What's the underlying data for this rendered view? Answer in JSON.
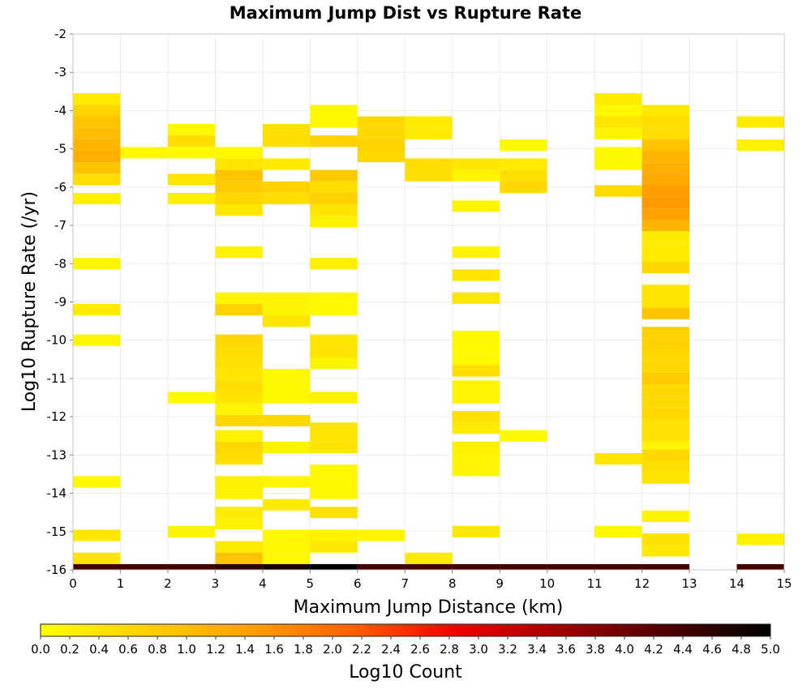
{
  "chart_data": {
    "type": "heatmap",
    "title": "Maximum Jump Dist vs Rupture Rate",
    "xlabel": "Maximum Jump Distance (km)",
    "ylabel": "Log10 Rupture Rate (/yr)",
    "xlim": [
      0,
      15
    ],
    "ylim": [
      -16,
      -2
    ],
    "x_ticks": [
      "0",
      "1",
      "2",
      "3",
      "4",
      "5",
      "6",
      "7",
      "8",
      "9",
      "10",
      "11",
      "12",
      "13",
      "14",
      "15"
    ],
    "y_ticks": [
      "-2",
      "-3",
      "-4",
      "-5",
      "-6",
      "-7",
      "-8",
      "-9",
      "-10",
      "-11",
      "-12",
      "-13",
      "-14",
      "-15",
      "-16"
    ],
    "x_bin_width": 1,
    "y_bin_height": 0.3,
    "grid": true,
    "colorbar": {
      "label": "Log10 Count",
      "min": 0,
      "max": 5,
      "ticks": [
        "0.0",
        "0.2",
        "0.4",
        "0.6",
        "0.8",
        "1.0",
        "1.2",
        "1.4",
        "1.6",
        "1.8",
        "2.0",
        "2.2",
        "2.4",
        "2.6",
        "2.8",
        "3.0",
        "3.2",
        "3.4",
        "3.6",
        "3.8",
        "4.0",
        "4.2",
        "4.4",
        "4.6",
        "4.8",
        "5.0"
      ],
      "colors": [
        "#ffff00",
        "#ffd000",
        "#ffa000",
        "#ff6000",
        "#ee0000",
        "#a00000",
        "#500000",
        "#000000"
      ]
    },
    "cells": [
      [
        0,
        -3.7,
        0.3
      ],
      [
        0,
        -4.0,
        0.65
      ],
      [
        0,
        -4.3,
        0.9
      ],
      [
        0,
        -4.6,
        1.0
      ],
      [
        0,
        -4.9,
        1.1
      ],
      [
        0,
        -5.2,
        1.2
      ],
      [
        0,
        -5.5,
        0.9
      ],
      [
        0,
        -5.8,
        0.5
      ],
      [
        0,
        -6.3,
        0.2
      ],
      [
        0,
        -8.0,
        0.15
      ],
      [
        0,
        -9.2,
        0.3
      ],
      [
        0,
        -10.0,
        0.15
      ],
      [
        0,
        -13.7,
        0.1
      ],
      [
        0,
        -15.1,
        0.35
      ],
      [
        0,
        -15.7,
        0.4
      ],
      [
        0,
        -16.0,
        4.4
      ],
      [
        1,
        -5.1,
        0.1
      ],
      [
        1,
        -16.0,
        4.4
      ],
      [
        2,
        -4.5,
        0.1
      ],
      [
        2,
        -4.8,
        0.5
      ],
      [
        2,
        -5.1,
        0.1
      ],
      [
        2,
        -5.8,
        0.4
      ],
      [
        2,
        -6.3,
        0.25
      ],
      [
        2,
        -11.5,
        0.1
      ],
      [
        2,
        -15.0,
        0.15
      ],
      [
        2,
        -16.0,
        4.4
      ],
      [
        3,
        -5.1,
        0.1
      ],
      [
        3,
        -5.4,
        0.4
      ],
      [
        3,
        -5.7,
        0.9
      ],
      [
        3,
        -6.0,
        0.8
      ],
      [
        3,
        -6.3,
        0.6
      ],
      [
        3,
        -6.6,
        0.35
      ],
      [
        3,
        -7.7,
        0.2
      ],
      [
        3,
        -8.9,
        0.15
      ],
      [
        3,
        -9.2,
        0.7
      ],
      [
        3,
        -10.0,
        0.6
      ],
      [
        3,
        -10.3,
        0.5
      ],
      [
        3,
        -10.6,
        0.45
      ],
      [
        3,
        -10.9,
        0.4
      ],
      [
        3,
        -11.2,
        0.5
      ],
      [
        3,
        -11.5,
        0.4
      ],
      [
        3,
        -11.8,
        0.15
      ],
      [
        3,
        -12.1,
        0.6
      ],
      [
        3,
        -12.5,
        0.2
      ],
      [
        3,
        -12.8,
        0.6
      ],
      [
        3,
        -13.1,
        0.5
      ],
      [
        3,
        -13.7,
        0.25
      ],
      [
        3,
        -14.0,
        0.2
      ],
      [
        3,
        -14.5,
        0.3
      ],
      [
        3,
        -14.8,
        0.2
      ],
      [
        3,
        -15.4,
        0.3
      ],
      [
        3,
        -15.7,
        0.9
      ],
      [
        3,
        -16.0,
        4.6
      ],
      [
        4,
        -4.5,
        0.5
      ],
      [
        4,
        -4.8,
        0.5
      ],
      [
        4,
        -5.4,
        0.3
      ],
      [
        4,
        -6.0,
        0.7
      ],
      [
        4,
        -6.3,
        0.5
      ],
      [
        4,
        -8.9,
        0.15
      ],
      [
        4,
        -9.2,
        0.15
      ],
      [
        4,
        -9.5,
        0.4
      ],
      [
        4,
        -10.9,
        0.1
      ],
      [
        4,
        -11.2,
        0.1
      ],
      [
        4,
        -11.5,
        0.1
      ],
      [
        4,
        -12.1,
        0.6
      ],
      [
        4,
        -12.8,
        0.2
      ],
      [
        4,
        -13.7,
        0.15
      ],
      [
        4,
        -14.3,
        0.3
      ],
      [
        4,
        -15.1,
        0.1
      ],
      [
        4,
        -15.4,
        0.1
      ],
      [
        4,
        -15.7,
        0.1
      ],
      [
        4,
        -16.0,
        4.8
      ],
      [
        5,
        -4.0,
        0.1
      ],
      [
        5,
        -4.3,
        0.1
      ],
      [
        5,
        -4.8,
        0.7
      ],
      [
        5,
        -5.7,
        0.8
      ],
      [
        5,
        -6.0,
        0.5
      ],
      [
        5,
        -6.3,
        0.7
      ],
      [
        5,
        -6.6,
        0.4
      ],
      [
        5,
        -6.9,
        0.2
      ],
      [
        5,
        -8.0,
        0.25
      ],
      [
        5,
        -8.9,
        0.1
      ],
      [
        5,
        -9.2,
        0.1
      ],
      [
        5,
        -10.0,
        0.4
      ],
      [
        5,
        -10.3,
        0.4
      ],
      [
        5,
        -10.6,
        0.15
      ],
      [
        5,
        -11.5,
        0.2
      ],
      [
        5,
        -12.3,
        0.4
      ],
      [
        5,
        -12.5,
        0.4
      ],
      [
        5,
        -12.8,
        0.4
      ],
      [
        5,
        -13.4,
        0.1
      ],
      [
        5,
        -13.7,
        0.1
      ],
      [
        5,
        -14.0,
        0.1
      ],
      [
        5,
        -14.5,
        0.45
      ],
      [
        5,
        -15.1,
        0.2
      ],
      [
        5,
        -15.4,
        0.35
      ],
      [
        5,
        -16.0,
        5.0
      ],
      [
        6,
        -4.3,
        0.6
      ],
      [
        6,
        -4.6,
        0.6
      ],
      [
        6,
        -4.9,
        0.7
      ],
      [
        6,
        -5.2,
        0.6
      ],
      [
        6,
        -15.1,
        0.15
      ],
      [
        6,
        -16.0,
        4.4
      ],
      [
        7,
        -4.3,
        0.3
      ],
      [
        7,
        -4.6,
        0.3
      ],
      [
        7,
        -5.4,
        0.5
      ],
      [
        7,
        -5.7,
        0.5
      ],
      [
        7,
        -15.7,
        0.3
      ],
      [
        7,
        -16.0,
        4.4
      ],
      [
        8,
        -5.4,
        0.4
      ],
      [
        8,
        -5.7,
        0.2
      ],
      [
        8,
        -6.5,
        0.15
      ],
      [
        8,
        -7.7,
        0.15
      ],
      [
        8,
        -8.3,
        0.4
      ],
      [
        8,
        -8.9,
        0.4
      ],
      [
        8,
        -9.9,
        0.1
      ],
      [
        8,
        -10.2,
        0.1
      ],
      [
        8,
        -10.5,
        0.1
      ],
      [
        8,
        -10.8,
        0.5
      ],
      [
        8,
        -11.2,
        0.15
      ],
      [
        8,
        -11.5,
        0.15
      ],
      [
        8,
        -12.0,
        0.45
      ],
      [
        8,
        -12.3,
        0.3
      ],
      [
        8,
        -12.8,
        0.25
      ],
      [
        8,
        -13.1,
        0.15
      ],
      [
        8,
        -13.4,
        0.15
      ],
      [
        8,
        -15.0,
        0.35
      ],
      [
        8,
        -16.0,
        4.4
      ],
      [
        9,
        -4.9,
        0.1
      ],
      [
        9,
        -5.4,
        0.3
      ],
      [
        9,
        -5.7,
        0.5
      ],
      [
        9,
        -6.0,
        0.6
      ],
      [
        9,
        -12.5,
        0.1
      ],
      [
        9,
        -16.0,
        4.4
      ],
      [
        10,
        -16.0,
        4.4
      ],
      [
        11,
        -3.7,
        0.3
      ],
      [
        11,
        -4.0,
        0.1
      ],
      [
        11,
        -4.3,
        0.4
      ],
      [
        11,
        -4.6,
        0.15
      ],
      [
        11,
        -5.1,
        0.1
      ],
      [
        11,
        -5.4,
        0.1
      ],
      [
        11,
        -6.1,
        0.55
      ],
      [
        11,
        -13.1,
        0.4
      ],
      [
        11,
        -15.0,
        0.1
      ],
      [
        11,
        -16.0,
        4.4
      ],
      [
        12,
        -4.0,
        0.35
      ],
      [
        12,
        -4.3,
        0.5
      ],
      [
        12,
        -4.6,
        0.5
      ],
      [
        12,
        -4.9,
        0.9
      ],
      [
        12,
        -5.2,
        1.1
      ],
      [
        12,
        -5.5,
        1.2
      ],
      [
        12,
        -5.8,
        1.3
      ],
      [
        12,
        -6.1,
        1.45
      ],
      [
        12,
        -6.4,
        1.5
      ],
      [
        12,
        -6.7,
        1.4
      ],
      [
        12,
        -7.0,
        1.1
      ],
      [
        12,
        -7.3,
        0.3
      ],
      [
        12,
        -7.6,
        0.3
      ],
      [
        12,
        -7.9,
        0.3
      ],
      [
        12,
        -8.1,
        0.6
      ],
      [
        12,
        -8.7,
        0.4
      ],
      [
        12,
        -9.0,
        0.4
      ],
      [
        12,
        -9.3,
        0.9
      ],
      [
        12,
        -9.8,
        0.7
      ],
      [
        12,
        -10.1,
        0.7
      ],
      [
        12,
        -10.4,
        0.6
      ],
      [
        12,
        -10.7,
        0.6
      ],
      [
        12,
        -11.0,
        0.8
      ],
      [
        12,
        -11.3,
        0.6
      ],
      [
        12,
        -11.6,
        0.6
      ],
      [
        12,
        -11.9,
        0.6
      ],
      [
        12,
        -12.2,
        0.45
      ],
      [
        12,
        -12.5,
        0.45
      ],
      [
        12,
        -12.8,
        0.15
      ],
      [
        12,
        -13.0,
        0.6
      ],
      [
        12,
        -13.3,
        0.5
      ],
      [
        12,
        -13.6,
        0.4
      ],
      [
        12,
        -14.6,
        0.15
      ],
      [
        12,
        -15.2,
        0.45
      ],
      [
        12,
        -15.5,
        0.35
      ],
      [
        12,
        -16.0,
        4.4
      ],
      [
        14,
        -4.3,
        0.3
      ],
      [
        14,
        -4.9,
        0.2
      ],
      [
        14,
        -15.2,
        0.2
      ],
      [
        14,
        -16.0,
        4.4
      ]
    ]
  }
}
